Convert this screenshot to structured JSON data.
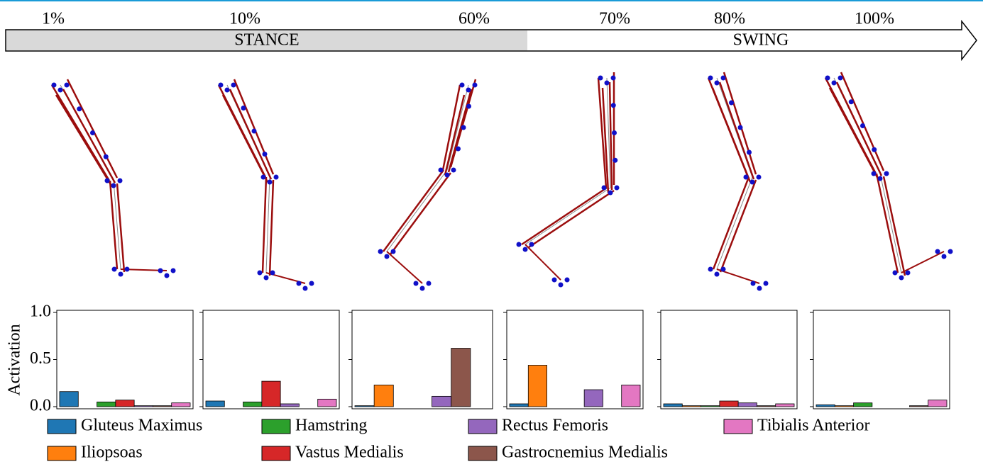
{
  "phases": {
    "stance": "STANCE",
    "swing": "SWING"
  },
  "y_label": "Activation",
  "legend": [
    {
      "name": "Gluteus Maximus",
      "color": "#1f77b4"
    },
    {
      "name": "Iliopsoas",
      "color": "#ff7f0e"
    },
    {
      "name": "Hamstring",
      "color": "#2ca02c"
    },
    {
      "name": "Vastus Medialis",
      "color": "#d62728"
    },
    {
      "name": "Rectus Femoris",
      "color": "#9467bd"
    },
    {
      "name": "Gastrocnemius Medialis",
      "color": "#8c564b"
    },
    {
      "name": "Tibialis Anterior",
      "color": "#e377c2"
    }
  ],
  "chart_data": [
    {
      "type": "bar",
      "title": "1%",
      "values": [
        0.16,
        0,
        0.05,
        0.07,
        0.01,
        0.01,
        0.04
      ],
      "ylim": [
        0,
        1
      ],
      "yticks": [
        {
          "value": 0,
          "label": "0.0"
        },
        {
          "value": 0.5,
          "label": "0.5"
        },
        {
          "value": 1,
          "label": "1.0"
        }
      ]
    },
    {
      "type": "bar",
      "title": "10%",
      "values": [
        0.06,
        0,
        0.05,
        0.27,
        0.03,
        0,
        0.08
      ],
      "ylim": [
        0,
        1
      ]
    },
    {
      "type": "bar",
      "title": "60%",
      "values": [
        0.01,
        0.23,
        0,
        0,
        0.11,
        0.62,
        0
      ],
      "ylim": [
        0,
        1
      ]
    },
    {
      "type": "bar",
      "title": "70%",
      "values": [
        0.03,
        0.44,
        0,
        0,
        0.18,
        0,
        0.23
      ],
      "ylim": [
        0,
        1
      ]
    },
    {
      "type": "bar",
      "title": "80%",
      "values": [
        0.03,
        0.01,
        0.01,
        0.06,
        0.04,
        0.01,
        0.03
      ],
      "ylim": [
        0,
        1
      ]
    },
    {
      "type": "bar",
      "title": "100%",
      "values": [
        0.02,
        0.01,
        0.04,
        0,
        0,
        0.01,
        0.07
      ],
      "ylim": [
        0,
        1
      ]
    }
  ]
}
